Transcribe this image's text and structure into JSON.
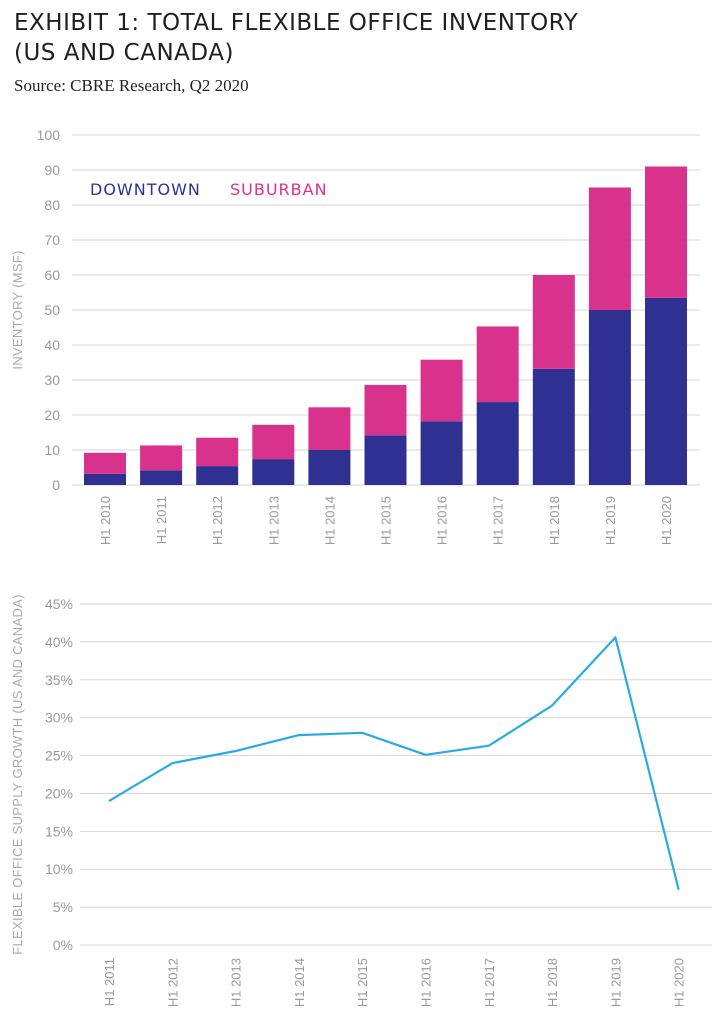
{
  "title_line1": "EXHIBIT 1: TOTAL FLEXIBLE OFFICE INVENTORY",
  "title_line2": "(US AND CANADA)",
  "source": "Source: CBRE Research, Q2 2020",
  "colors": {
    "downtown": "#2e3192",
    "suburban": "#d9328c",
    "growth": "#29abe2"
  },
  "chart_data": [
    {
      "type": "bar",
      "stacked": true,
      "categories": [
        "H1 2010",
        "H1 2011",
        "H1 2012",
        "H1 2013",
        "H1 2014",
        "H1 2015",
        "H1 2016",
        "H1 2017",
        "H1 2018",
        "H1 2019",
        "H1 2020"
      ],
      "series": [
        {
          "name": "DOWNTOWN",
          "values": [
            3.2,
            4.2,
            5.4,
            7.4,
            10.0,
            14.2,
            18.2,
            23.7,
            33.2,
            50.0,
            53.5
          ]
        },
        {
          "name": "SUBURBAN",
          "values": [
            6.0,
            7.1,
            8.1,
            9.8,
            12.2,
            14.4,
            17.6,
            21.6,
            26.8,
            35.0,
            37.5
          ]
        }
      ],
      "ylabel": "INVENTORY (MSF)",
      "ylim": [
        0,
        100
      ],
      "yticks": [
        0,
        10,
        20,
        30,
        40,
        50,
        60,
        70,
        80,
        90,
        100
      ],
      "legend_position": "top-left",
      "grid": true
    },
    {
      "type": "line",
      "categories": [
        "H1 2011",
        "H1 2012",
        "H1 2013",
        "H1 2014",
        "H1 2015",
        "H1 2016",
        "H1 2017",
        "H1 2018",
        "H1 2019",
        "H1 2020"
      ],
      "values": [
        19.0,
        24.0,
        25.6,
        27.7,
        28.0,
        25.1,
        26.3,
        31.6,
        40.6,
        7.3
      ],
      "ylabel": "FLEXIBLE OFFICE SUPPLY GROWTH (US AND CANADA)",
      "ylim": [
        0,
        45
      ],
      "yticks": [
        "0%",
        "5%",
        "10%",
        "15%",
        "20%",
        "25%",
        "30%",
        "35%",
        "40%",
        "45%"
      ],
      "grid": true
    }
  ]
}
